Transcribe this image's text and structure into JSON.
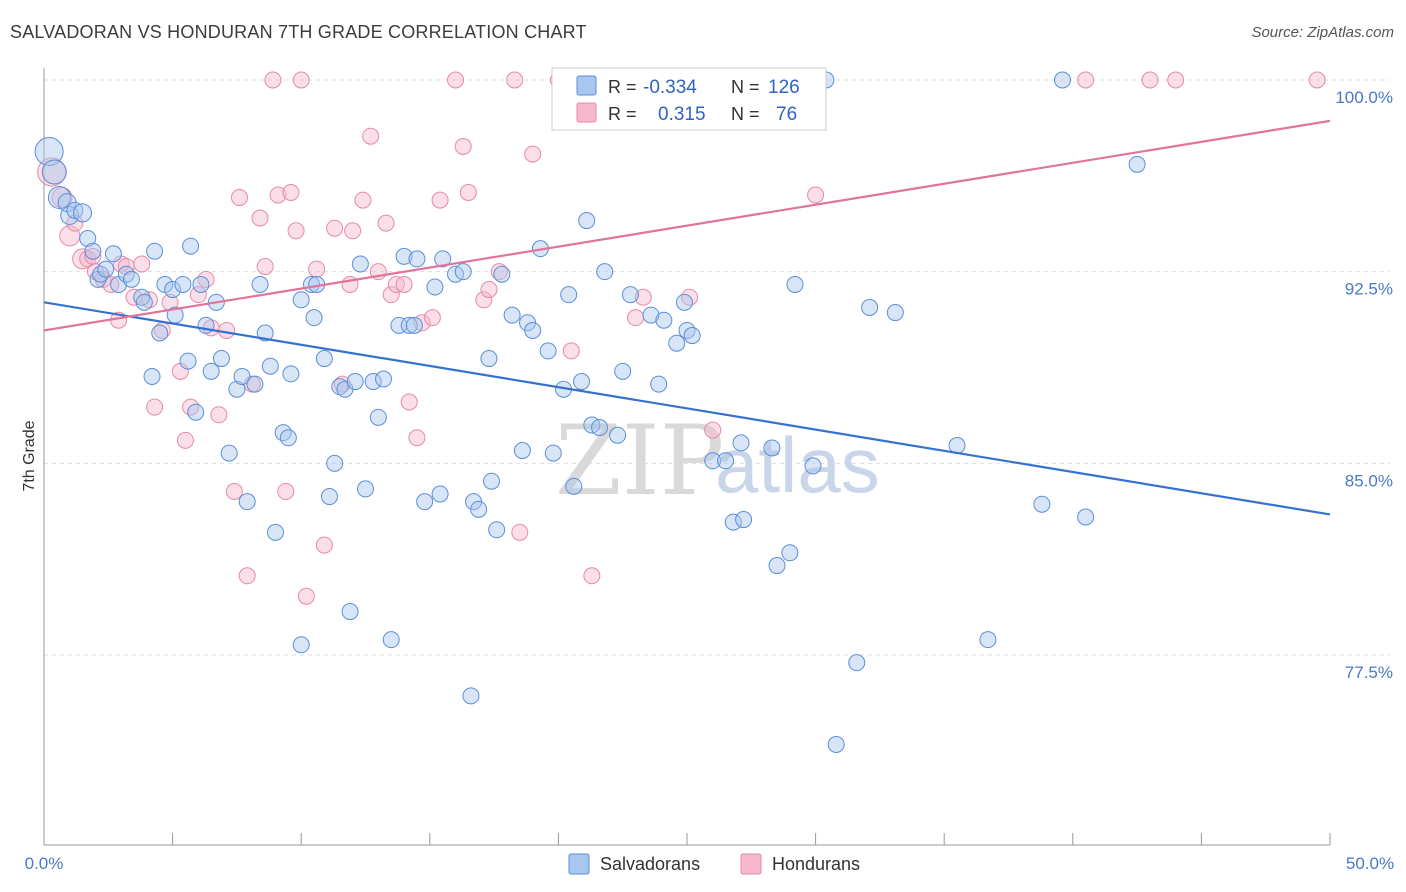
{
  "title": "SALVADORAN VS HONDURAN 7TH GRADE CORRELATION CHART",
  "source": "Source: ZipAtlas.com",
  "watermark": {
    "zip": "ZIP",
    "atlas": "atlas"
  },
  "colors": {
    "blue_fill": "#a9c6ee",
    "blue_stroke": "#5a8fd8",
    "blue_line": "#3572d0",
    "pink_fill": "#f5b8cc",
    "pink_stroke": "#e889a8",
    "pink_line": "#e2739a",
    "tick_text": "#4a78c8",
    "grid": "#dddddd"
  },
  "legend": {
    "r_label": "R =",
    "n_label": "N =",
    "salvadoran": {
      "r": "-0.334",
      "n": "126"
    },
    "honduran": {
      "r": "0.315",
      "n": "76"
    }
  },
  "chart_data": {
    "type": "scatter",
    "xlabel": "",
    "ylabel": "7th Grade",
    "xlim": [
      0,
      50
    ],
    "ylim": [
      72,
      100.6
    ],
    "x_tick_labels": {
      "min": "0.0%",
      "max": "50.0%"
    },
    "y_ticks": [
      {
        "value": 77.5,
        "label": "77.5%"
      },
      {
        "value": 85.0,
        "label": "85.0%"
      },
      {
        "value": 92.5,
        "label": "92.5%"
      },
      {
        "value": 100.0,
        "label": "100.0%"
      }
    ],
    "grid": true,
    "legend_position": "top-center",
    "series": [
      {
        "name": "Salvadorans",
        "color": "#a9c6ee",
        "trend": {
          "x": [
            0,
            50
          ],
          "y": [
            91.3,
            83.0
          ]
        },
        "points": [
          [
            0.2,
            97.2,
            14
          ],
          [
            0.4,
            96.4,
            12
          ],
          [
            0.6,
            95.4,
            11
          ],
          [
            0.9,
            95.2,
            9
          ],
          [
            1.0,
            94.7,
            9
          ],
          [
            1.2,
            94.9,
            8
          ],
          [
            1.5,
            94.8,
            9
          ],
          [
            1.7,
            93.8,
            8
          ],
          [
            1.9,
            93.3,
            8
          ],
          [
            2.1,
            92.2,
            8
          ],
          [
            2.2,
            92.4,
            8
          ],
          [
            2.4,
            92.6,
            8
          ],
          [
            2.7,
            93.2,
            8
          ],
          [
            2.9,
            92.0,
            8
          ],
          [
            3.2,
            92.4,
            8
          ],
          [
            3.4,
            92.2,
            8
          ],
          [
            3.8,
            91.5,
            8
          ],
          [
            3.9,
            91.3,
            8
          ],
          [
            4.2,
            88.4,
            8
          ],
          [
            4.3,
            93.3,
            8
          ],
          [
            4.5,
            90.1,
            8
          ],
          [
            4.7,
            92.0,
            8
          ],
          [
            5.0,
            91.8,
            8
          ],
          [
            5.1,
            90.8,
            8
          ],
          [
            5.4,
            92.0,
            8
          ],
          [
            5.6,
            89.0,
            8
          ],
          [
            5.7,
            93.5,
            8
          ],
          [
            5.9,
            87.0,
            8
          ],
          [
            6.1,
            92.0,
            8
          ],
          [
            6.3,
            90.4,
            8
          ],
          [
            6.5,
            88.6,
            8
          ],
          [
            6.7,
            91.3,
            8
          ],
          [
            6.9,
            89.1,
            8
          ],
          [
            7.2,
            85.4,
            8
          ],
          [
            7.5,
            87.9,
            8
          ],
          [
            7.7,
            88.4,
            8
          ],
          [
            7.9,
            83.5,
            8
          ],
          [
            8.2,
            88.1,
            8
          ],
          [
            8.4,
            92.0,
            8
          ],
          [
            8.6,
            90.1,
            8
          ],
          [
            8.8,
            88.8,
            8
          ],
          [
            9.0,
            82.3,
            8
          ],
          [
            9.3,
            86.2,
            8
          ],
          [
            9.5,
            86.0,
            8
          ],
          [
            9.6,
            88.5,
            8
          ],
          [
            10.0,
            91.4,
            8
          ],
          [
            10.0,
            77.9,
            8
          ],
          [
            10.4,
            92.0,
            8
          ],
          [
            10.5,
            90.7,
            8
          ],
          [
            10.6,
            92.0,
            8
          ],
          [
            10.9,
            89.1,
            8
          ],
          [
            11.1,
            83.7,
            8
          ],
          [
            11.3,
            85.0,
            8
          ],
          [
            11.5,
            88.0,
            8
          ],
          [
            11.7,
            87.9,
            8
          ],
          [
            11.9,
            79.2,
            8
          ],
          [
            12.1,
            88.2,
            8
          ],
          [
            12.3,
            92.8,
            8
          ],
          [
            12.5,
            84.0,
            8
          ],
          [
            12.8,
            88.2,
            8
          ],
          [
            13.0,
            86.8,
            8
          ],
          [
            13.2,
            88.3,
            8
          ],
          [
            13.5,
            78.1,
            8
          ],
          [
            13.8,
            90.4,
            8
          ],
          [
            14.0,
            93.1,
            8
          ],
          [
            14.2,
            90.4,
            8
          ],
          [
            14.4,
            90.4,
            8
          ],
          [
            14.5,
            93.0,
            8
          ],
          [
            14.8,
            83.5,
            8
          ],
          [
            15.2,
            91.9,
            8
          ],
          [
            15.4,
            83.8,
            8
          ],
          [
            15.5,
            93.0,
            8
          ],
          [
            16.0,
            92.4,
            8
          ],
          [
            16.3,
            92.5,
            8
          ],
          [
            16.6,
            75.9,
            8
          ],
          [
            16.7,
            83.5,
            8
          ],
          [
            16.9,
            83.2,
            8
          ],
          [
            17.3,
            89.1,
            8
          ],
          [
            17.4,
            84.3,
            8
          ],
          [
            17.6,
            82.4,
            8
          ],
          [
            17.8,
            92.4,
            8
          ],
          [
            18.2,
            90.8,
            8
          ],
          [
            18.6,
            85.5,
            8
          ],
          [
            18.8,
            90.5,
            8
          ],
          [
            19.0,
            90.2,
            8
          ],
          [
            19.3,
            93.4,
            8
          ],
          [
            19.6,
            89.4,
            8
          ],
          [
            19.8,
            85.4,
            8
          ],
          [
            20.2,
            87.9,
            8
          ],
          [
            20.4,
            91.6,
            8
          ],
          [
            20.6,
            84.1,
            8
          ],
          [
            20.9,
            88.2,
            8
          ],
          [
            21.1,
            94.5,
            8
          ],
          [
            21.3,
            86.5,
            8
          ],
          [
            21.6,
            86.4,
            8
          ],
          [
            21.8,
            92.5,
            8
          ],
          [
            22.3,
            86.1,
            8
          ],
          [
            22.5,
            88.6,
            8
          ],
          [
            22.8,
            91.6,
            8
          ],
          [
            23.6,
            90.8,
            8
          ],
          [
            23.9,
            88.1,
            8
          ],
          [
            24.1,
            90.6,
            8
          ],
          [
            24.6,
            89.7,
            8
          ],
          [
            24.9,
            91.3,
            8
          ],
          [
            25.0,
            90.2,
            8
          ],
          [
            25.2,
            90.0,
            8
          ],
          [
            26.0,
            85.1,
            8
          ],
          [
            26.5,
            85.1,
            8
          ],
          [
            26.8,
            82.7,
            8
          ],
          [
            27.1,
            85.8,
            8
          ],
          [
            27.2,
            82.8,
            8
          ],
          [
            27.8,
            100.0,
            8
          ],
          [
            28.3,
            85.6,
            8
          ],
          [
            28.5,
            81.0,
            8
          ],
          [
            29.0,
            81.5,
            8
          ],
          [
            29.2,
            92.0,
            8
          ],
          [
            29.9,
            84.9,
            8
          ],
          [
            30.4,
            100.0,
            8
          ],
          [
            30.8,
            74.0,
            8
          ],
          [
            31.6,
            77.2,
            8
          ],
          [
            32.1,
            91.1,
            8
          ],
          [
            33.1,
            90.9,
            8
          ],
          [
            35.5,
            85.7,
            8
          ],
          [
            36.7,
            78.1,
            8
          ],
          [
            38.8,
            83.4,
            8
          ],
          [
            39.6,
            100.0,
            8
          ],
          [
            40.5,
            82.9,
            8
          ],
          [
            42.5,
            96.7,
            8
          ]
        ]
      },
      {
        "name": "Hondurans",
        "color": "#f5b8cc",
        "trend": {
          "x": [
            0,
            50
          ],
          "y": [
            90.2,
            98.4
          ]
        },
        "points": [
          [
            0.3,
            96.4,
            14
          ],
          [
            0.7,
            95.4,
            10
          ],
          [
            1.0,
            93.9,
            10
          ],
          [
            1.2,
            94.4,
            8
          ],
          [
            1.5,
            93.0,
            10
          ],
          [
            1.7,
            93.0,
            8
          ],
          [
            1.9,
            93.1,
            8
          ],
          [
            2.0,
            92.5,
            8
          ],
          [
            2.3,
            92.2,
            8
          ],
          [
            2.6,
            92.0,
            8
          ],
          [
            2.9,
            90.6,
            8
          ],
          [
            3.0,
            92.8,
            8
          ],
          [
            3.2,
            92.7,
            8
          ],
          [
            3.5,
            91.5,
            8
          ],
          [
            3.8,
            92.8,
            8
          ],
          [
            4.1,
            91.4,
            8
          ],
          [
            4.3,
            87.2,
            8
          ],
          [
            4.6,
            90.2,
            8
          ],
          [
            4.9,
            91.3,
            8
          ],
          [
            5.3,
            88.6,
            8
          ],
          [
            5.5,
            85.9,
            8
          ],
          [
            5.7,
            87.2,
            8
          ],
          [
            6.0,
            91.6,
            8
          ],
          [
            6.3,
            92.2,
            8
          ],
          [
            6.5,
            90.3,
            8
          ],
          [
            6.8,
            86.9,
            8
          ],
          [
            7.1,
            90.2,
            8
          ],
          [
            7.4,
            83.9,
            8
          ],
          [
            7.6,
            95.4,
            8
          ],
          [
            7.9,
            80.6,
            8
          ],
          [
            8.1,
            88.1,
            8
          ],
          [
            8.4,
            94.6,
            8
          ],
          [
            8.6,
            92.7,
            8
          ],
          [
            8.9,
            100.0,
            8
          ],
          [
            9.1,
            95.5,
            8
          ],
          [
            9.4,
            83.9,
            8
          ],
          [
            9.6,
            95.6,
            8
          ],
          [
            9.8,
            94.1,
            8
          ],
          [
            10.0,
            100.0,
            8
          ],
          [
            10.2,
            79.8,
            8
          ],
          [
            10.6,
            92.6,
            8
          ],
          [
            10.9,
            81.8,
            8
          ],
          [
            11.3,
            94.2,
            8
          ],
          [
            11.6,
            88.1,
            8
          ],
          [
            11.9,
            92.0,
            8
          ],
          [
            12.0,
            94.1,
            8
          ],
          [
            12.4,
            95.3,
            8
          ],
          [
            12.7,
            97.8,
            8
          ],
          [
            13.0,
            92.5,
            8
          ],
          [
            13.3,
            94.4,
            8
          ],
          [
            13.5,
            91.6,
            8
          ],
          [
            13.7,
            92.0,
            8
          ],
          [
            14.0,
            92.0,
            8
          ],
          [
            14.2,
            87.4,
            8
          ],
          [
            14.5,
            86.0,
            8
          ],
          [
            14.7,
            90.5,
            8
          ],
          [
            15.1,
            90.7,
            8
          ],
          [
            15.4,
            95.3,
            8
          ],
          [
            16.0,
            100.0,
            8
          ],
          [
            16.3,
            97.4,
            8
          ],
          [
            16.5,
            95.6,
            8
          ],
          [
            17.1,
            91.4,
            8
          ],
          [
            17.3,
            91.8,
            8
          ],
          [
            17.7,
            92.5,
            8
          ],
          [
            18.3,
            100.0,
            8
          ],
          [
            18.5,
            82.3,
            8
          ],
          [
            19.0,
            97.1,
            8
          ],
          [
            20.0,
            100.0,
            8
          ],
          [
            20.5,
            89.4,
            8
          ],
          [
            21.3,
            80.6,
            8
          ],
          [
            23.0,
            90.7,
            8
          ],
          [
            23.3,
            91.5,
            8
          ],
          [
            24.0,
            99.8,
            8
          ],
          [
            25.1,
            91.5,
            8
          ],
          [
            26.0,
            86.3,
            8
          ],
          [
            28.5,
            100.0,
            8
          ],
          [
            30.0,
            95.5,
            8
          ],
          [
            40.5,
            100.0,
            8
          ],
          [
            43.0,
            100.0,
            8
          ],
          [
            44.0,
            100.0,
            8
          ],
          [
            49.5,
            100.0,
            8
          ]
        ]
      }
    ]
  }
}
